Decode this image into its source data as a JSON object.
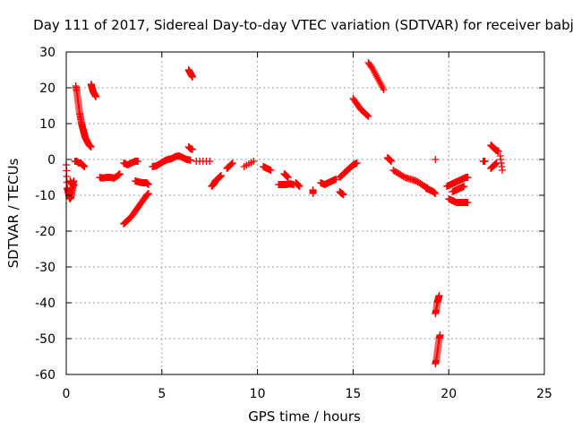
{
  "chart_data": {
    "type": "scatter",
    "title": "Day 111 of 2017, Sidereal Day-to-day VTEC variation (SDTVAR) for receiver babj",
    "xlabel": "GPS time / hours",
    "ylabel": "SDTVAR / TECUs",
    "xlim": [
      0,
      25
    ],
    "ylim": [
      -60,
      30
    ],
    "xticks": [
      0,
      5,
      10,
      15,
      20,
      25
    ],
    "yticks": [
      -60,
      -50,
      -40,
      -30,
      -20,
      -10,
      0,
      10,
      20,
      30
    ],
    "grid": true,
    "marker": "+",
    "color": "#ff0000",
    "series": [
      {
        "name": "SDTVAR",
        "segments": [
          [
            [
              0.0,
              -1.5
            ],
            [
              0.05,
              -8
            ],
            [
              0.1,
              -9
            ],
            [
              0.15,
              -10.5
            ],
            [
              0.2,
              -11
            ],
            [
              0.25,
              -10.5
            ],
            [
              0.3,
              -9
            ],
            [
              0.35,
              -7.5
            ],
            [
              0.4,
              -7
            ]
          ],
          [
            [
              0.2,
              -6
            ],
            [
              0.3,
              -7
            ],
            [
              0.4,
              -6
            ]
          ],
          [
            [
              0.45,
              -0.5
            ],
            [
              0.55,
              -0.5
            ],
            [
              0.65,
              -1
            ],
            [
              0.75,
              -1
            ],
            [
              0.85,
              -1.5
            ],
            [
              0.95,
              -2
            ]
          ],
          [
            [
              0.5,
              20.5
            ],
            [
              0.55,
              19
            ],
            [
              0.6,
              17
            ],
            [
              0.65,
              15
            ],
            [
              0.7,
              13
            ],
            [
              0.75,
              11.5
            ],
            [
              0.8,
              10
            ],
            [
              0.85,
              9
            ],
            [
              0.9,
              8
            ],
            [
              0.95,
              7
            ],
            [
              1.0,
              6
            ],
            [
              1.1,
              5
            ],
            [
              1.2,
              4
            ],
            [
              1.3,
              3.5
            ]
          ],
          [
            [
              1.3,
              21
            ],
            [
              1.35,
              20
            ],
            [
              1.4,
              19
            ],
            [
              1.45,
              18.5
            ],
            [
              1.5,
              18
            ],
            [
              1.55,
              17.5
            ]
          ],
          [
            [
              1.75,
              -5
            ],
            [
              1.9,
              -5.2
            ],
            [
              2.1,
              -5
            ],
            [
              2.3,
              -5
            ],
            [
              2.5,
              -5.2
            ],
            [
              2.7,
              -4.5
            ],
            [
              2.8,
              -4
            ]
          ],
          [
            [
              3.0,
              -1
            ],
            [
              3.2,
              -1.5
            ],
            [
              3.4,
              -1
            ],
            [
              3.6,
              -0.5
            ],
            [
              3.75,
              -0.5
            ]
          ],
          [
            [
              3.0,
              -18
            ],
            [
              3.2,
              -17
            ],
            [
              3.4,
              -16
            ],
            [
              3.6,
              -14.5
            ],
            [
              3.8,
              -13
            ],
            [
              4.0,
              -11.5
            ],
            [
              4.2,
              -10
            ],
            [
              4.3,
              -9.5
            ]
          ],
          [
            [
              3.6,
              -6
            ],
            [
              3.8,
              -6.3
            ],
            [
              4.0,
              -6.5
            ],
            [
              4.2,
              -6.5
            ],
            [
              4.3,
              -7
            ]
          ],
          [
            [
              4.5,
              -2
            ],
            [
              4.7,
              -1.8
            ],
            [
              4.9,
              -1.2
            ],
            [
              5.1,
              -0.5
            ],
            [
              5.3,
              0
            ],
            [
              5.5,
              0.2
            ],
            [
              5.7,
              0.8
            ],
            [
              5.9,
              1
            ],
            [
              6.1,
              0.5
            ],
            [
              6.3,
              0
            ],
            [
              6.5,
              -0.2
            ]
          ],
          [
            [
              6.4,
              3.5
            ],
            [
              6.5,
              3
            ],
            [
              6.6,
              2.8
            ]
          ],
          [
            [
              6.4,
              25
            ],
            [
              6.45,
              24.5
            ],
            [
              6.5,
              24
            ],
            [
              6.55,
              23.5
            ],
            [
              6.6,
              23
            ]
          ],
          [
            [
              6.8,
              -0.5
            ],
            [
              7.5,
              -0.5
            ]
          ],
          [
            [
              7.6,
              -7.5
            ],
            [
              7.7,
              -7
            ],
            [
              7.8,
              -6
            ],
            [
              7.9,
              -5.5
            ],
            [
              8.0,
              -5
            ],
            [
              8.1,
              -4.5
            ]
          ],
          [
            [
              8.4,
              -2.5
            ],
            [
              8.5,
              -2
            ],
            [
              8.7,
              -1
            ]
          ],
          [
            [
              9.3,
              -2
            ],
            [
              9.8,
              -0.5
            ]
          ],
          [
            [
              10.3,
              -2
            ],
            [
              10.5,
              -2.5
            ],
            [
              10.7,
              -3
            ]
          ],
          [
            [
              11.1,
              -7
            ],
            [
              11.3,
              -7
            ],
            [
              11.5,
              -7
            ],
            [
              11.7,
              -6.8
            ],
            [
              11.9,
              -7
            ]
          ],
          [
            [
              11.4,
              -4
            ],
            [
              11.5,
              -4.5
            ],
            [
              11.6,
              -5
            ]
          ],
          [
            [
              12.0,
              -6.5
            ],
            [
              12.1,
              -7
            ],
            [
              12.2,
              -7.5
            ]
          ],
          [
            [
              12.9,
              -8.5
            ],
            [
              12.9,
              -9.5
            ]
          ],
          [
            [
              13.3,
              -6.5
            ],
            [
              13.5,
              -7
            ],
            [
              13.7,
              -6.5
            ],
            [
              13.9,
              -6
            ],
            [
              14.1,
              -5.5
            ]
          ],
          [
            [
              14.3,
              -5
            ],
            [
              14.5,
              -4
            ],
            [
              14.6,
              -3.5
            ],
            [
              14.8,
              -2.5
            ],
            [
              15.0,
              -1.5
            ],
            [
              15.2,
              -1
            ]
          ],
          [
            [
              14.3,
              -9
            ],
            [
              14.4,
              -9.5
            ],
            [
              14.5,
              -9.8
            ]
          ],
          [
            [
              15.0,
              17
            ],
            [
              15.2,
              15.5
            ],
            [
              15.4,
              14
            ],
            [
              15.6,
              13
            ],
            [
              15.8,
              12
            ]
          ],
          [
            [
              15.8,
              27
            ],
            [
              16.0,
              25.5
            ],
            [
              16.2,
              23.5
            ],
            [
              16.4,
              21.5
            ],
            [
              16.6,
              19.5
            ]
          ],
          [
            [
              16.8,
              0.5
            ],
            [
              16.9,
              0
            ],
            [
              17.0,
              -0.5
            ]
          ],
          [
            [
              17.1,
              -3
            ],
            [
              17.4,
              -4
            ],
            [
              17.7,
              -5
            ],
            [
              18.0,
              -5.5
            ],
            [
              18.3,
              -6
            ],
            [
              18.6,
              -7
            ],
            [
              18.9,
              -8
            ]
          ],
          [
            [
              18.8,
              -8
            ],
            [
              19.0,
              -8.5
            ],
            [
              19.2,
              -9
            ],
            [
              19.3,
              -9.5
            ]
          ],
          [
            [
              19.3,
              0
            ]
          ],
          [
            [
              19.3,
              -43
            ],
            [
              19.35,
              -42
            ],
            [
              19.4,
              -40
            ],
            [
              19.45,
              -39
            ],
            [
              19.5,
              -38
            ]
          ],
          [
            [
              19.3,
              -57
            ],
            [
              19.35,
              -56
            ],
            [
              19.4,
              -54
            ],
            [
              19.45,
              -52
            ],
            [
              19.5,
              -50
            ],
            [
              19.55,
              -49
            ]
          ],
          [
            [
              19.9,
              -7.5
            ],
            [
              20.1,
              -7
            ],
            [
              20.3,
              -6.5
            ],
            [
              20.5,
              -6
            ],
            [
              20.7,
              -5.5
            ],
            [
              20.9,
              -5
            ],
            [
              21.0,
              -5
            ]
          ],
          [
            [
              20.0,
              -11
            ],
            [
              20.2,
              -11.5
            ],
            [
              20.4,
              -12
            ],
            [
              20.6,
              -12
            ],
            [
              20.8,
              -12
            ],
            [
              21.0,
              -12
            ]
          ],
          [
            [
              20.2,
              -9
            ],
            [
              20.4,
              -8.5
            ],
            [
              20.6,
              -8
            ],
            [
              20.8,
              -7.5
            ]
          ],
          [
            [
              21.8,
              -0.5
            ],
            [
              21.9,
              -0.5
            ]
          ],
          [
            [
              22.2,
              4
            ],
            [
              22.3,
              3.5
            ],
            [
              22.4,
              3
            ],
            [
              22.5,
              2.5
            ],
            [
              22.6,
              2.3
            ]
          ],
          [
            [
              22.2,
              -2.5
            ],
            [
              22.3,
              -2
            ],
            [
              22.4,
              -1.5
            ],
            [
              22.5,
              -1
            ]
          ],
          [
            [
              22.7,
              1
            ],
            [
              22.8,
              -3
            ]
          ]
        ]
      }
    ]
  }
}
